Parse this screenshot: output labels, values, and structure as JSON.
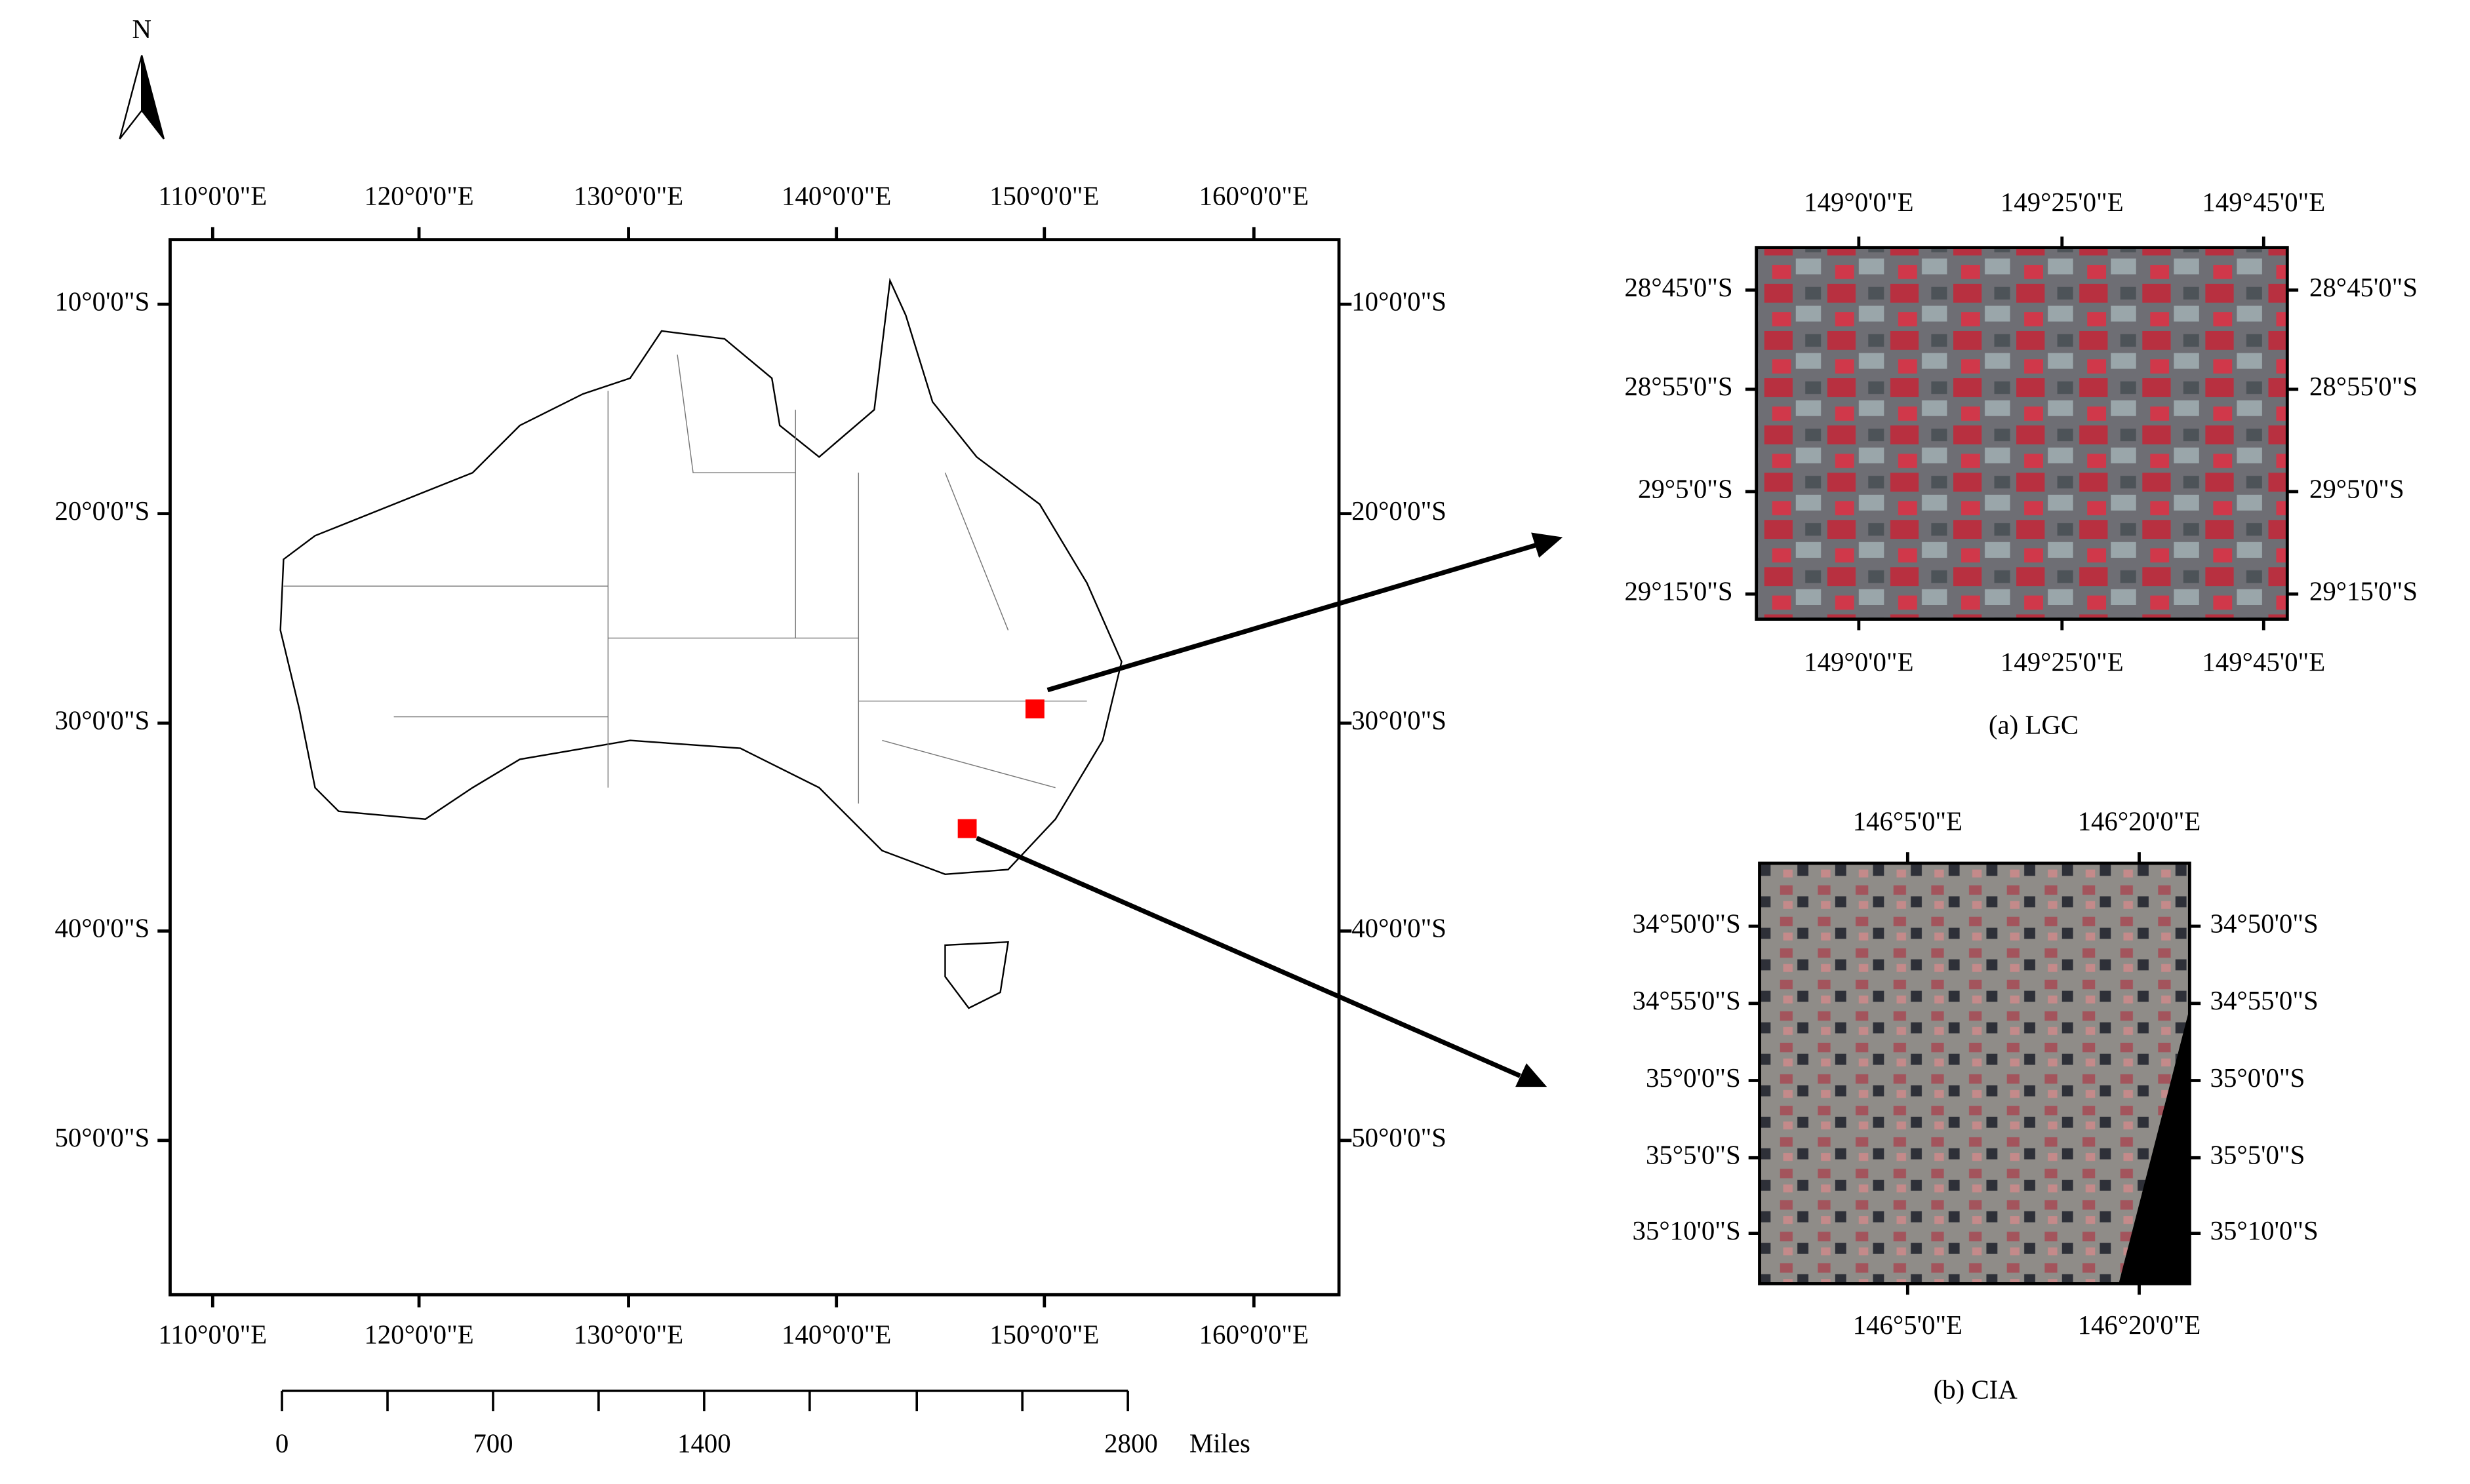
{
  "north_arrow": {
    "label": "N"
  },
  "main_map": {
    "top_labels": [
      "110°0'0\"E",
      "120°0'0\"E",
      "130°0'0\"E",
      "140°0'0\"E",
      "150°0'0\"E",
      "160°0'0\"E"
    ],
    "bottom_labels": [
      "110°0'0\"E",
      "120°0'0\"E",
      "130°0'0\"E",
      "140°0'0\"E",
      "150°0'0\"E",
      "160°0'0\"E"
    ],
    "left_labels": [
      "10°0'0\"S",
      "20°0'0\"S",
      "30°0'0\"S",
      "40°0'0\"S",
      "50°0'0\"S"
    ],
    "right_labels": [
      "10°0'0\"S",
      "20°0'0\"S",
      "30°0'0\"S",
      "40°0'0\"S",
      "50°0'0\"S"
    ]
  },
  "inset_a": {
    "top_labels": [
      "149°0'0\"E",
      "149°25'0\"E",
      "149°45'0\"E"
    ],
    "bottom_labels": [
      "149°0'0\"E",
      "149°25'0\"E",
      "149°45'0\"E"
    ],
    "left_labels": [
      "28°45'0\"S",
      "28°55'0\"S",
      "29°5'0\"S",
      "29°15'0\"S"
    ],
    "right_labels": [
      "28°45'0\"S",
      "28°55'0\"S",
      "29°5'0\"S",
      "29°15'0\"S"
    ],
    "caption": "(a) LGC"
  },
  "inset_b": {
    "top_labels": [
      "146°5'0\"E",
      "146°20'0\"E"
    ],
    "bottom_labels": [
      "146°5'0\"E",
      "146°20'0\"E"
    ],
    "left_labels": [
      "34°50'0\"S",
      "34°55'0\"S",
      "35°0'0\"S",
      "35°5'0\"S",
      "35°10'0\"S"
    ],
    "right_labels": [
      "34°50'0\"S",
      "34°55'0\"S",
      "35°0'0\"S",
      "35°5'0\"S",
      "35°10'0\"S"
    ],
    "caption": "(b) CIA"
  },
  "scale_bar": {
    "labels": [
      "0",
      "700",
      "1400",
      "2800"
    ],
    "unit": "Miles"
  }
}
